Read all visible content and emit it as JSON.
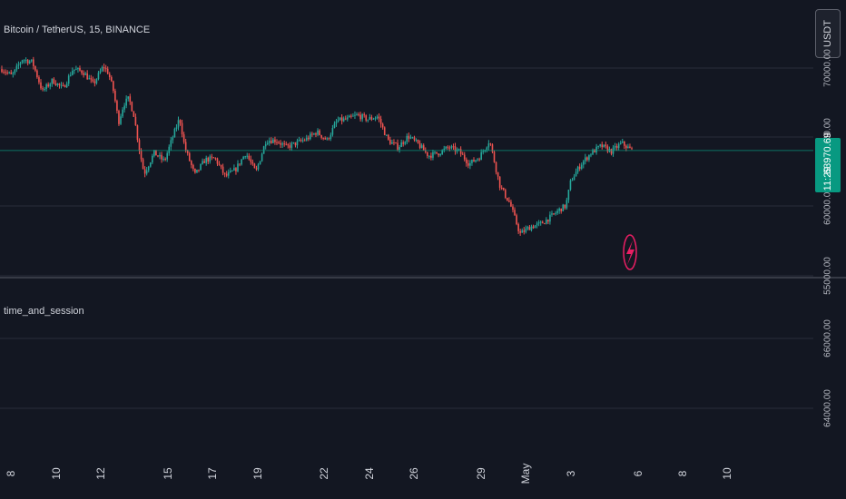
{
  "header": {
    "symbol_title": "Bitcoin / TetherUS, 15, BINANCE"
  },
  "toolbar": {
    "currency_label": "USDT"
  },
  "indicator": {
    "title": "time_and_session",
    "icon": "lightning-bolt-icon"
  },
  "last_price": {
    "value": "63970.69",
    "countdown": "11:29",
    "color": "#089981"
  },
  "colors": {
    "background": "#131722",
    "up": "#26a69a",
    "down": "#ef5350",
    "grid": "#2a2e39",
    "marker": "#e91e63"
  },
  "y_axis": {
    "main_ticks": [
      "70000.00",
      "65000.00",
      "60000.00",
      "55000.00"
    ],
    "indicator_ticks": [
      "66000.00",
      "64000.00"
    ]
  },
  "x_axis": {
    "ticks": [
      "8",
      "10",
      "12",
      "15",
      "17",
      "19",
      "22",
      "24",
      "26",
      "29",
      "May",
      "3",
      "6",
      "8",
      "10"
    ]
  },
  "chart_data": {
    "type": "candlestick",
    "title": "Bitcoin / TetherUS, 15, BINANCE",
    "interval": "15",
    "ylim": [
      55000,
      71000
    ],
    "x_ticks": [
      "8",
      "10",
      "12",
      "15",
      "17",
      "19",
      "22",
      "24",
      "26",
      "29",
      "May",
      "3",
      "6",
      "8",
      "10"
    ],
    "y_ticks": [
      70000,
      65000,
      60000,
      55000
    ],
    "last_price": 63970.69,
    "path": [
      {
        "x": 0,
        "y": 69800
      },
      {
        "x": 2,
        "y": 69300
      },
      {
        "x": 4,
        "y": 70500
      },
      {
        "x": 6,
        "y": 70300
      },
      {
        "x": 8,
        "y": 68200
      },
      {
        "x": 10,
        "y": 69000
      },
      {
        "x": 12,
        "y": 68400
      },
      {
        "x": 14,
        "y": 69800
      },
      {
        "x": 16,
        "y": 69600
      },
      {
        "x": 18,
        "y": 68700
      },
      {
        "x": 20,
        "y": 70000
      },
      {
        "x": 21,
        "y": 69500
      },
      {
        "x": 22,
        "y": 68200
      },
      {
        "x": 23,
        "y": 66000
      },
      {
        "x": 24,
        "y": 67300
      },
      {
        "x": 25,
        "y": 67700
      },
      {
        "x": 26,
        "y": 66500
      },
      {
        "x": 27,
        "y": 64200
      },
      {
        "x": 28,
        "y": 62300
      },
      {
        "x": 30,
        "y": 63800
      },
      {
        "x": 32,
        "y": 63200
      },
      {
        "x": 34,
        "y": 65300
      },
      {
        "x": 35,
        "y": 66300
      },
      {
        "x": 36,
        "y": 64200
      },
      {
        "x": 38,
        "y": 62200
      },
      {
        "x": 40,
        "y": 63300
      },
      {
        "x": 42,
        "y": 63400
      },
      {
        "x": 44,
        "y": 62100
      },
      {
        "x": 46,
        "y": 62600
      },
      {
        "x": 48,
        "y": 63800
      },
      {
        "x": 50,
        "y": 62400
      },
      {
        "x": 52,
        "y": 64700
      },
      {
        "x": 54,
        "y": 64700
      },
      {
        "x": 56,
        "y": 64200
      },
      {
        "x": 58,
        "y": 64500
      },
      {
        "x": 60,
        "y": 64800
      },
      {
        "x": 62,
        "y": 65300
      },
      {
        "x": 64,
        "y": 64700
      },
      {
        "x": 66,
        "y": 66100
      },
      {
        "x": 68,
        "y": 66200
      },
      {
        "x": 70,
        "y": 66500
      },
      {
        "x": 72,
        "y": 66200
      },
      {
        "x": 74,
        "y": 66400
      },
      {
        "x": 76,
        "y": 64700
      },
      {
        "x": 78,
        "y": 64200
      },
      {
        "x": 80,
        "y": 65000
      },
      {
        "x": 82,
        "y": 64400
      },
      {
        "x": 84,
        "y": 63600
      },
      {
        "x": 86,
        "y": 63800
      },
      {
        "x": 88,
        "y": 64200
      },
      {
        "x": 90,
        "y": 63900
      },
      {
        "x": 92,
        "y": 63000
      },
      {
        "x": 94,
        "y": 63500
      },
      {
        "x": 96,
        "y": 64700
      },
      {
        "x": 97,
        "y": 63100
      },
      {
        "x": 98,
        "y": 61500
      },
      {
        "x": 99,
        "y": 60800
      },
      {
        "x": 100,
        "y": 60200
      },
      {
        "x": 102,
        "y": 58000
      },
      {
        "x": 104,
        "y": 58500
      },
      {
        "x": 106,
        "y": 58700
      },
      {
        "x": 108,
        "y": 59200
      },
      {
        "x": 110,
        "y": 59800
      },
      {
        "x": 111,
        "y": 60000
      },
      {
        "x": 112,
        "y": 61800
      },
      {
        "x": 114,
        "y": 63000
      },
      {
        "x": 116,
        "y": 63800
      },
      {
        "x": 118,
        "y": 64300
      },
      {
        "x": 120,
        "y": 63900
      },
      {
        "x": 122,
        "y": 64500
      },
      {
        "x": 124,
        "y": 63970
      }
    ]
  }
}
